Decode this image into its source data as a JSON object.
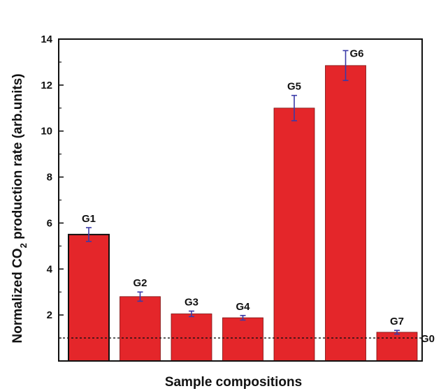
{
  "chart_data": {
    "type": "bar",
    "categories": [
      "G1",
      "G2",
      "G3",
      "G4",
      "G5",
      "G6",
      "G7"
    ],
    "values": [
      5.5,
      2.8,
      2.05,
      1.88,
      11.0,
      12.85,
      1.25
    ],
    "errors": [
      0.3,
      0.2,
      0.12,
      0.1,
      0.55,
      0.65,
      0.08
    ],
    "bar_color": "#e4262a",
    "error_bar_color": "#3a3aa8",
    "ylabel": "Normalized CO",
    "ylabel_sub": "2",
    "ylabel_suffix": " production rate (arb.units)",
    "xlabel": "Sample compositions",
    "ylim": [
      0,
      14
    ],
    "yticks": [
      2,
      4,
      6,
      8,
      10,
      12,
      14
    ],
    "reference_line": {
      "value": 1.0,
      "label": "G0",
      "style": "dotted"
    },
    "grid": false,
    "legend": "none"
  }
}
